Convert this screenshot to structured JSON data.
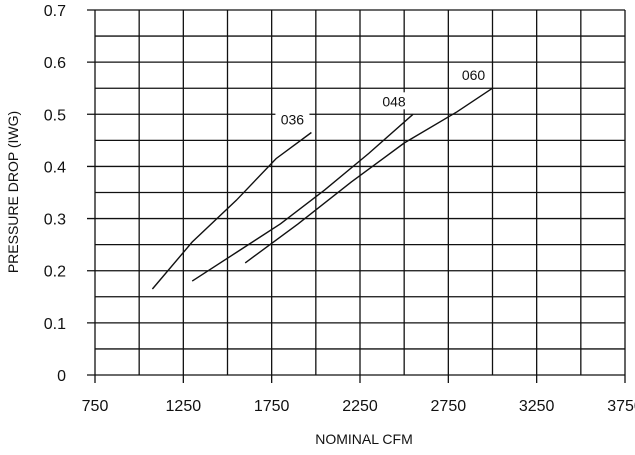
{
  "chart_data": {
    "type": "line",
    "title": "",
    "xlabel": "NOMINAL CFM",
    "ylabel": "PRESSURE DROP (IWG)",
    "xlim": [
      750,
      3750
    ],
    "ylim": [
      0,
      0.7
    ],
    "xticks": [
      "750",
      "1250",
      "1750",
      "2250",
      "2750",
      "3250",
      "3750"
    ],
    "yticks": [
      "0",
      "0.1",
      "0.2",
      "0.3",
      "0.4",
      "0.5",
      "0.6",
      "0.7"
    ],
    "grid": true,
    "series": [
      {
        "name": "036",
        "x": [
          1075,
          1300,
          1550,
          1775,
          1975
        ],
        "y": [
          0.165,
          0.255,
          0.335,
          0.415,
          0.465
        ]
      },
      {
        "name": "048",
        "x": [
          1300,
          1550,
          1800,
          2050,
          2300,
          2550
        ],
        "y": [
          0.18,
          0.235,
          0.29,
          0.355,
          0.425,
          0.5
        ]
      },
      {
        "name": "060",
        "x": [
          1600,
          1900,
          2200,
          2500,
          2800,
          3000
        ],
        "y": [
          0.215,
          0.29,
          0.37,
          0.445,
          0.505,
          0.55
        ]
      }
    ]
  }
}
